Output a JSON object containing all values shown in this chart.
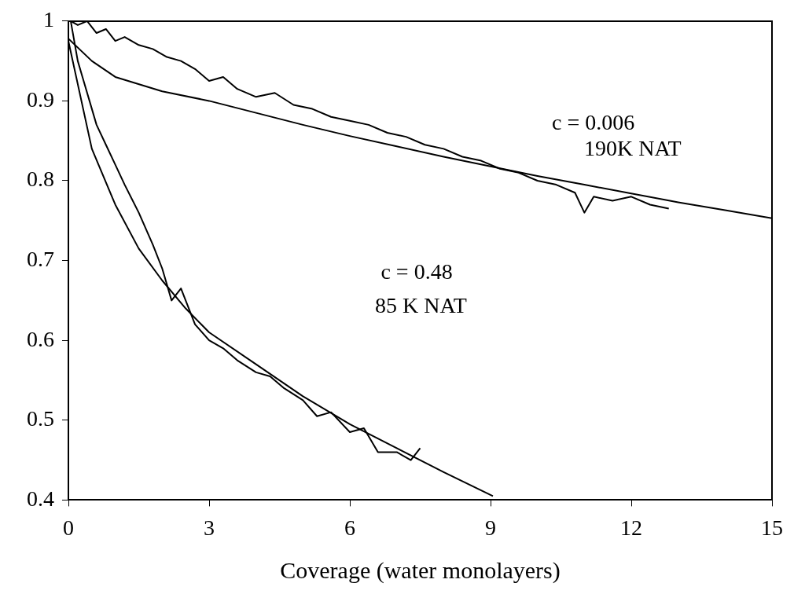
{
  "chart_data": {
    "type": "line",
    "xlabel": "Coverage (water monolayers)",
    "xlim": [
      0,
      15
    ],
    "xticks": [
      0,
      3,
      6,
      9,
      12,
      15
    ],
    "ylim": [
      0.4,
      1
    ],
    "yticks": [
      0.4,
      0.5,
      0.6,
      0.7,
      0.8,
      0.9,
      1
    ],
    "grid": false,
    "legend": false,
    "marker": "none",
    "line_style": "solid",
    "series": [
      {
        "color": "#000000",
        "x": [
          0.05,
          0.2,
          0.4,
          0.6,
          0.8,
          1,
          1.2,
          1.5,
          1.8,
          2.1,
          2.4,
          2.7,
          3,
          3.3,
          3.6,
          4,
          4.4,
          4.8,
          5.2,
          5.6,
          6,
          6.4,
          6.8,
          7.2,
          7.6,
          8,
          8.4,
          8.8,
          9.2,
          9.6,
          10,
          10.4,
          10.8,
          11,
          11.2,
          11.6,
          12,
          12.4,
          12.8
        ],
        "values": [
          1.0,
          0.995,
          1.0,
          0.985,
          0.99,
          0.975,
          0.98,
          0.97,
          0.965,
          0.955,
          0.95,
          0.94,
          0.925,
          0.93,
          0.915,
          0.905,
          0.91,
          0.895,
          0.89,
          0.88,
          0.875,
          0.87,
          0.86,
          0.855,
          0.845,
          0.84,
          0.83,
          0.825,
          0.815,
          0.81,
          0.8,
          0.795,
          0.785,
          0.76,
          0.78,
          0.775,
          0.78,
          0.77,
          0.765
        ]
      },
      {
        "color": "#000000",
        "x": [
          0,
          0.5,
          1,
          2,
          3,
          4,
          5,
          6,
          7,
          8,
          9,
          10,
          11,
          12,
          13,
          14,
          15
        ],
        "values": [
          0.978,
          0.95,
          0.93,
          0.912,
          0.9,
          0.885,
          0.87,
          0.856,
          0.843,
          0.83,
          0.818,
          0.806,
          0.795,
          0.784,
          0.773,
          0.763,
          0.753
        ]
      },
      {
        "color": "#000000",
        "x": [
          0.05,
          0.2,
          0.3,
          0.45,
          0.6,
          0.8,
          1,
          1.2,
          1.5,
          1.8,
          2,
          2.2,
          2.4,
          2.7,
          3,
          3.3,
          3.6,
          4,
          4.3,
          4.6,
          5,
          5.3,
          5.6,
          6,
          6.3,
          6.6,
          7,
          7.3,
          7.5
        ],
        "values": [
          1.0,
          0.95,
          0.93,
          0.9,
          0.87,
          0.845,
          0.82,
          0.795,
          0.76,
          0.72,
          0.69,
          0.65,
          0.665,
          0.62,
          0.6,
          0.59,
          0.575,
          0.56,
          0.555,
          0.54,
          0.525,
          0.505,
          0.51,
          0.485,
          0.49,
          0.46,
          0.46,
          0.45,
          0.465
        ]
      },
      {
        "color": "#000000",
        "x": [
          0,
          0.5,
          1,
          1.5,
          2,
          2.5,
          3,
          4,
          5,
          6,
          7,
          8,
          9.05
        ],
        "values": [
          0.975,
          0.84,
          0.77,
          0.715,
          0.675,
          0.64,
          0.61,
          0.57,
          0.53,
          0.495,
          0.465,
          0.435,
          0.405
        ]
      }
    ],
    "annotations": [
      "c = 0.006",
      "190K NAT",
      "c = 0.48",
      "85 K NAT"
    ]
  }
}
